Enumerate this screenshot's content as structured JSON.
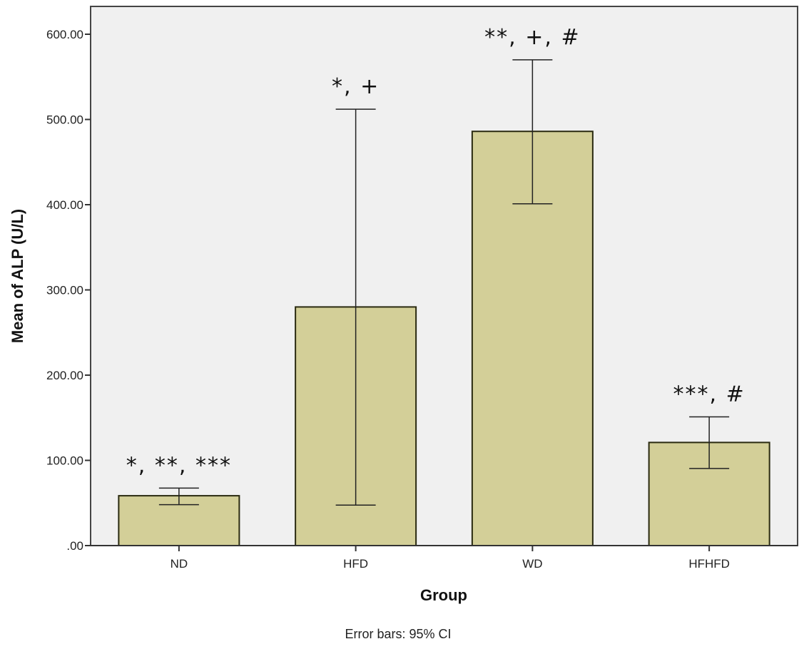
{
  "chart_data": {
    "type": "bar",
    "title": "",
    "xlabel": "Group",
    "ylabel": "Mean of ALP (U/L)",
    "ylim": [
      0,
      630
    ],
    "yticks": [
      0,
      100,
      200,
      300,
      400,
      500,
      600
    ],
    "ytick_labels": [
      ".00",
      "100.00",
      "200.00",
      "300.00",
      "400.00",
      "500.00",
      "600.00"
    ],
    "categories": [
      "ND",
      "HFD",
      "WD",
      "HFHFD"
    ],
    "values": [
      58.5,
      280,
      486,
      121
    ],
    "error_low": [
      48,
      47.5,
      401,
      90.5
    ],
    "error_high": [
      67.5,
      512,
      570,
      151
    ],
    "annotations": [
      "*, **, ***",
      "*, +",
      "**, +, #",
      "***, #"
    ],
    "footnote": "Error bars: 95% CI",
    "grid": false,
    "colors": {
      "bar": "#d3cf98",
      "plot_bg": "#f0f0f0",
      "stroke": "#222222"
    }
  }
}
